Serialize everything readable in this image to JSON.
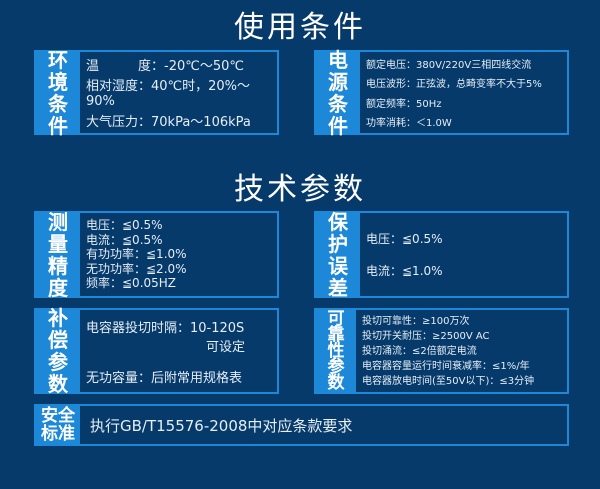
{
  "titles": {
    "usage": "使用条件",
    "tech": "技术参数"
  },
  "env": {
    "label": "环境条件",
    "lines": [
      "温　　　度：-20℃～50℃",
      "相对湿度：40℃时，20%～90%",
      "大气压力：70kPa～106kPa"
    ]
  },
  "power": {
    "label": "电源条件",
    "lines": [
      "额定电压：380V/220V三相四线交流",
      "电压波形：正弦波，总畸变率不大于5%",
      "额定频率：50Hz",
      "功率消耗：＜1.0W"
    ]
  },
  "measure": {
    "label": "测量精度",
    "lines": [
      "电压：≦0.5%",
      "电流：≦0.5%",
      "有功功率：≦1.0%",
      "无功功率：≦2.0%",
      "频率：≦0.05HZ"
    ]
  },
  "protect": {
    "label": "保护误差",
    "lines": [
      "电压：≦0.5%",
      "电流：≦1.0%"
    ]
  },
  "comp": {
    "label": "补偿参数",
    "lines": [
      "电容器投切时隔：10-120S",
      "可设定",
      "无功容量：后附常用规格表"
    ]
  },
  "reliab": {
    "label": "可靠性参数",
    "lines": [
      "投切可靠性：≥100万次",
      "投切开关耐压：≥2500V AC",
      "投切涌流：≤2倍额定电流",
      "电容器容量运行时间衰减率：≤1%/年",
      "电容器放电时间(至50V以下)：≤3分钟"
    ]
  },
  "safety": {
    "label": "安全标准",
    "text": "执行GB/T15576-2008中对应条款要求"
  }
}
